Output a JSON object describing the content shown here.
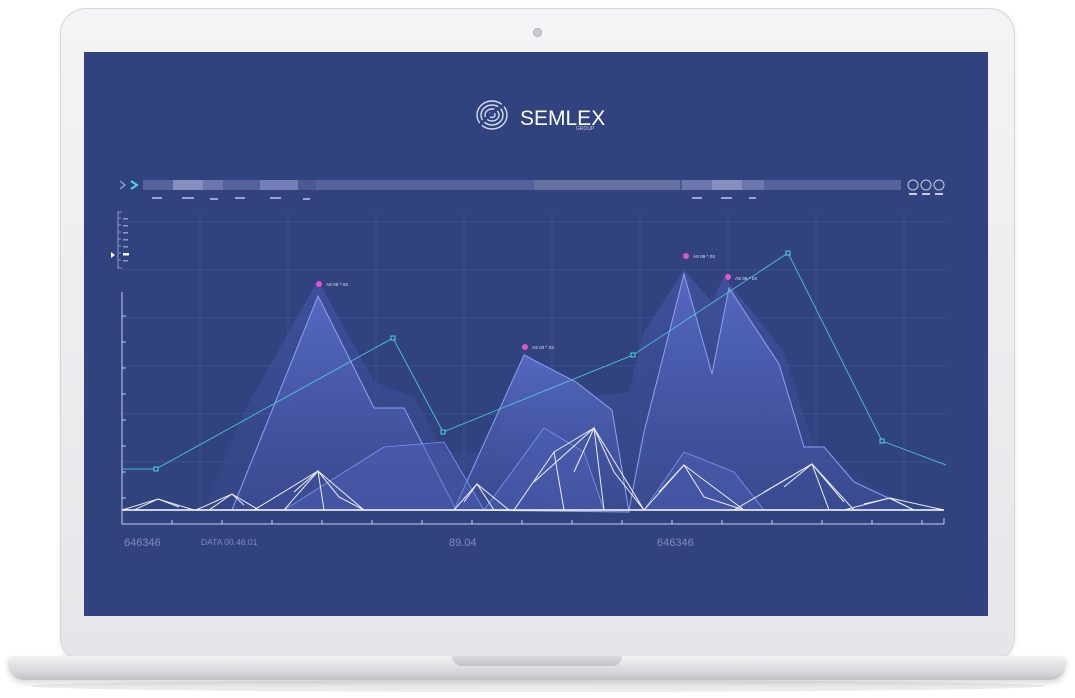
{
  "brand": {
    "name": "SEMLEX",
    "sub": "GROUP"
  },
  "axis_labels": [
    "646346",
    "DATA 00.46.01",
    "89.04",
    "646346"
  ],
  "markers": [
    {
      "label": "AS 09 ^ 03"
    },
    {
      "label": "AS 03 ^ 03"
    },
    {
      "label": "AS 09 ^ 03"
    },
    {
      "label": "AS 09 ^ 03"
    }
  ],
  "colors": {
    "screen_bg": "#31437f",
    "area_fill": "#4a5bb0",
    "line": "#7e95f2",
    "cyan": "#4fd3e6",
    "marker": "#e353c9",
    "timeline_bar": "#56639b",
    "timeline_highlight": "#8590bf"
  },
  "icons": [
    "arrow-right-icon",
    "circle-icon",
    "circle-icon",
    "circle-icon",
    "triangle-pointer-icon",
    "fingerprint-logo-icon"
  ]
}
